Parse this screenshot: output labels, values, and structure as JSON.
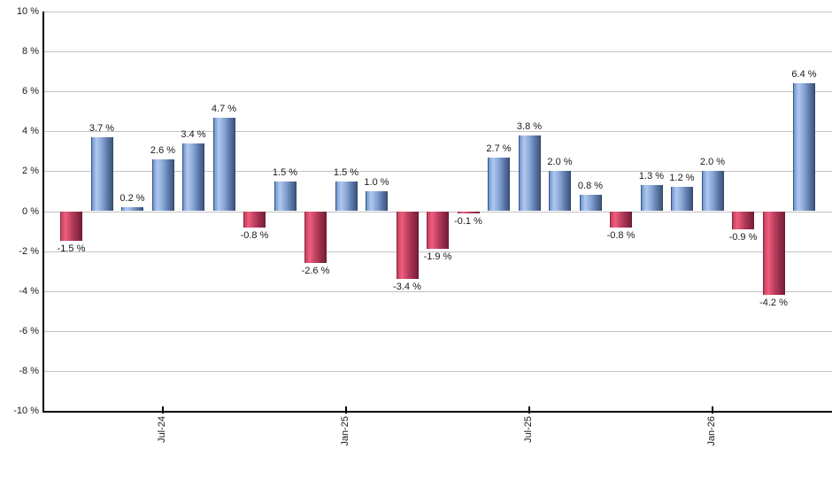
{
  "chart_data": {
    "type": "bar",
    "title": "",
    "xlabel": "",
    "ylabel": "",
    "values": [
      -1.5,
      3.7,
      0.2,
      2.6,
      3.4,
      4.7,
      -0.8,
      1.5,
      -2.6,
      1.5,
      1.0,
      -3.4,
      -1.9,
      -0.1,
      2.7,
      3.8,
      2.0,
      0.8,
      -0.8,
      1.3,
      1.2,
      2.0,
      -0.9,
      -4.2,
      6.4
    ],
    "value_label_suffix": " %",
    "y_tick_labels": [
      "10 %",
      "8 %",
      "6 %",
      "4 %",
      "2 %",
      "0 %",
      "-2 %",
      "-4 %",
      "-6 %",
      "-8 %",
      "-10 %"
    ],
    "ylim": [
      -10,
      10
    ],
    "y_step": 2,
    "x_ticks": [
      {
        "label": "Jul-24",
        "index": 3
      },
      {
        "label": "Jan-25",
        "index": 9
      },
      {
        "label": "Jul-25",
        "index": 15
      },
      {
        "label": "Jan-26",
        "index": 21
      }
    ],
    "grid": true,
    "legend": "none",
    "colors": {
      "positive_bar": "#88a5d4",
      "positive_highlight": "#b0c9ef",
      "positive_dark": "#3f567c",
      "negative_bar": "#c04062",
      "negative_highlight": "#ee5f7d",
      "negative_dark": "#77203a",
      "gridline": "#c3c3c3",
      "axis": "#000000",
      "text": "#1a1a1a",
      "background": "#ffffff"
    }
  }
}
